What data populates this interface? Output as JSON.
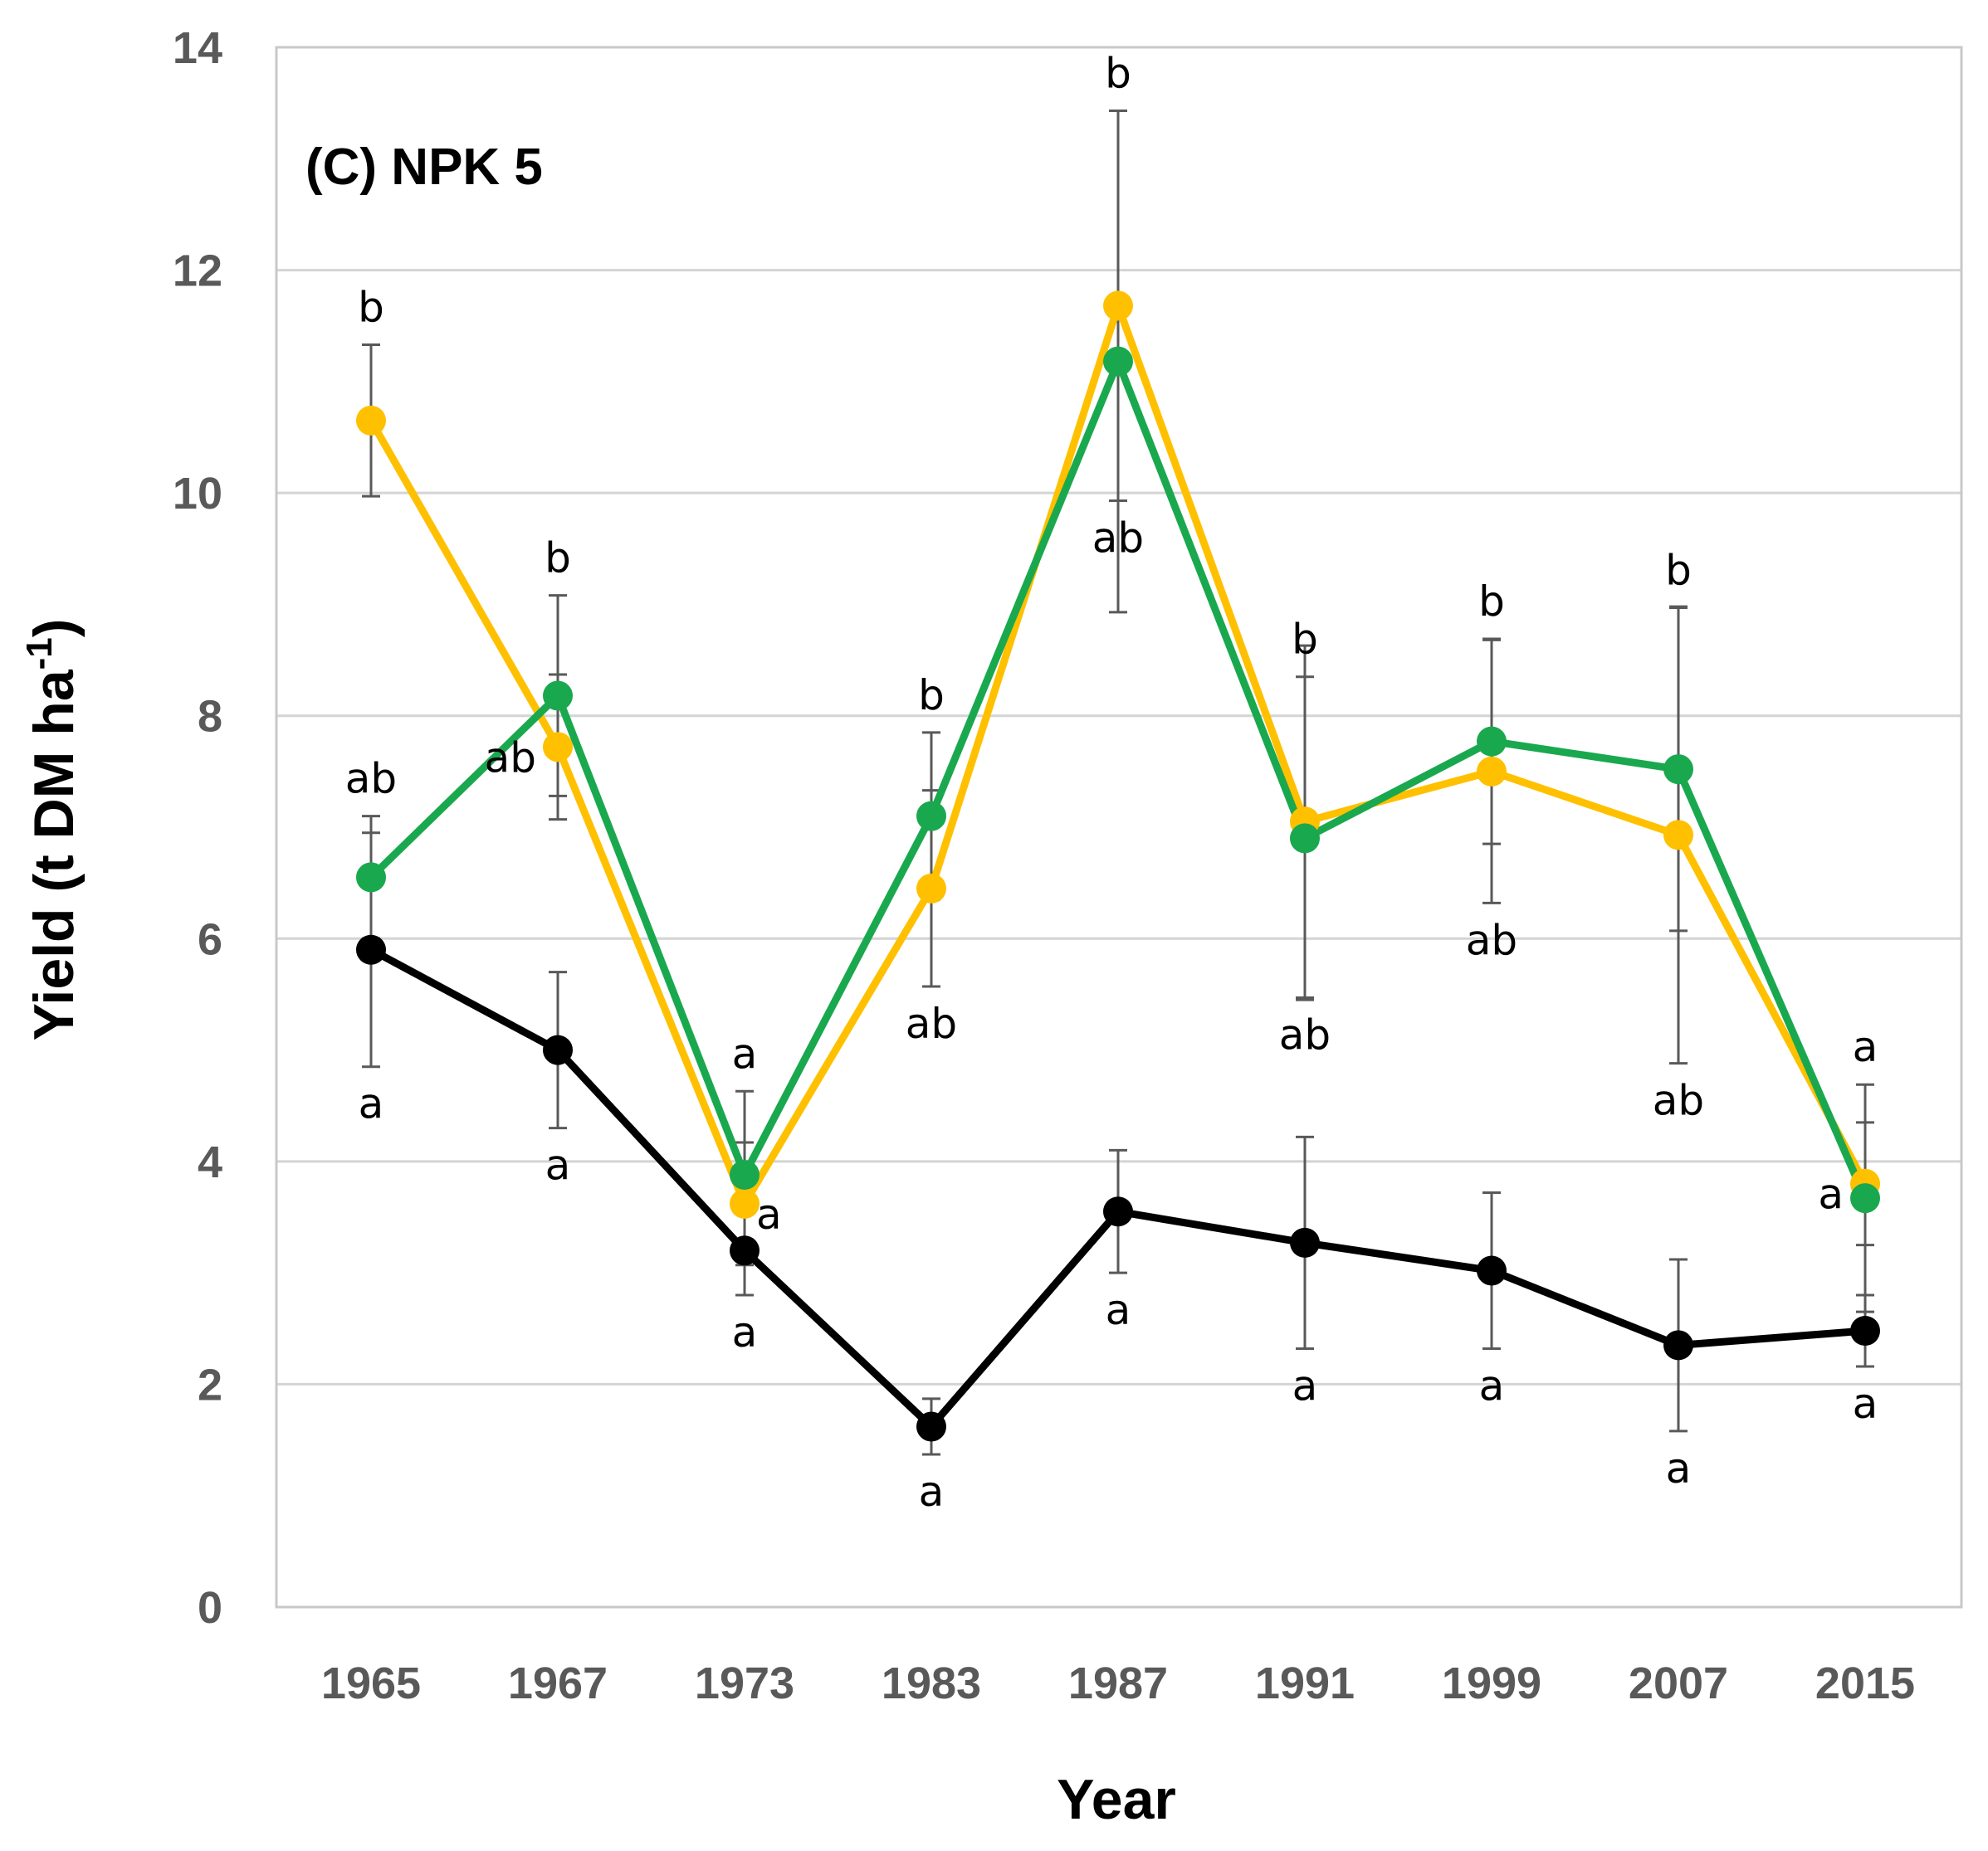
{
  "chart_data": {
    "type": "line",
    "title": "(C) NPK 5",
    "xlabel": "Year",
    "ylabel": "Yield (t DM ha",
    "ylabel_superscript": "-1",
    "ylabel_suffix": ")",
    "ylim": [
      0,
      14
    ],
    "yticks": [
      0,
      2,
      4,
      6,
      8,
      10,
      12,
      14
    ],
    "grid": true,
    "categories": [
      "1965",
      "1967",
      "1973",
      "1983",
      "1987",
      "1991",
      "1999",
      "2007",
      "2015"
    ],
    "series": [
      {
        "name": "black",
        "color": "#000000",
        "values": [
          5.9,
          5.0,
          3.2,
          1.62,
          3.55,
          3.27,
          3.02,
          2.35,
          2.48
        ],
        "errors": [
          1.05,
          0.7,
          0.4,
          0.25,
          0.55,
          0.95,
          0.7,
          0.77,
          0.32
        ],
        "letters": [
          "a",
          "a",
          "a",
          "a",
          "a",
          "a",
          "a",
          "a",
          "a"
        ],
        "letter_pos": [
          "below",
          "below",
          "below",
          "below",
          "below",
          "below",
          "below",
          "below",
          "below"
        ]
      },
      {
        "name": "yellow",
        "color": "#FFC000",
        "values": [
          10.65,
          7.72,
          3.62,
          6.45,
          11.68,
          7.05,
          7.5,
          6.93,
          3.8
        ],
        "errors": [
          0.68,
          0.65,
          0.55,
          0.88,
          1.75,
          1.58,
          1.18,
          2.05,
          0.55
        ],
        "letters": [
          "b",
          "ab",
          "a",
          "ab",
          "ab",
          "ab",
          "ab",
          "ab",
          "a"
        ],
        "letter_pos": [
          "above",
          "left",
          "right",
          "below",
          "below",
          "below",
          "below",
          "below",
          "left"
        ]
      },
      {
        "name": "green",
        "color": "#1AA84F",
        "values": [
          6.55,
          8.18,
          3.88,
          7.1,
          11.18,
          6.9,
          7.77,
          7.52,
          3.67
        ],
        "errors": [
          0.55,
          0.9,
          0.75,
          0.75,
          2.25,
          1.45,
          0.92,
          1.45,
          1.02
        ],
        "letters": [
          "ab",
          "b",
          "a",
          "b",
          "b",
          "b",
          "b",
          "b",
          "a"
        ],
        "letter_pos": [
          "above",
          "above",
          "above",
          "above",
          "above",
          "above",
          "above",
          "above",
          "above"
        ]
      }
    ]
  }
}
